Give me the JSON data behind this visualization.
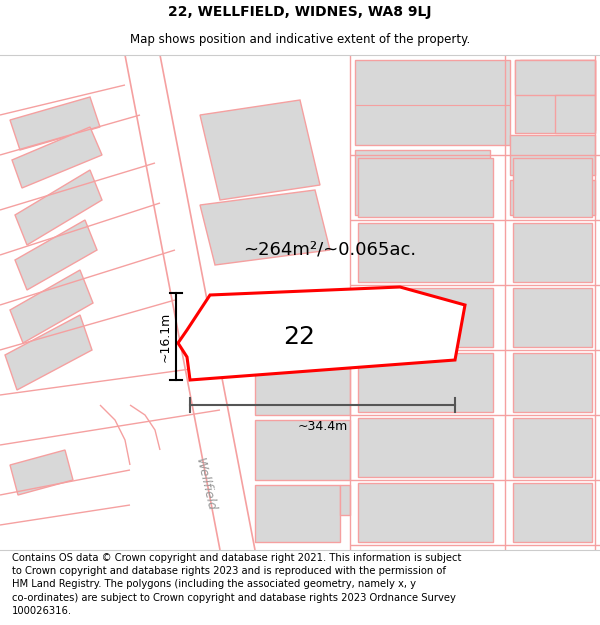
{
  "title": "22, WELLFIELD, WIDNES, WA8 9LJ",
  "subtitle": "Map shows position and indicative extent of the property.",
  "footer": "Contains OS data © Crown copyright and database right 2021. This information is subject\nto Crown copyright and database rights 2023 and is reproduced with the permission of\nHM Land Registry. The polygons (including the associated geometry, namely x, y\nco-ordinates) are subject to Crown copyright and database rights 2023 Ordnance Survey\n100026316.",
  "area_text": "~264m²/~0.065ac.",
  "label_22": "22",
  "dim_width": "~34.4m",
  "dim_height": "~16.1m",
  "road_label": "Wellfield",
  "road_color": "#f5a0a0",
  "building_fill": "#d8d8d8",
  "map_bg": "#ffffff",
  "title_fontsize": 10,
  "subtitle_fontsize": 8.5,
  "footer_fontsize": 7.2,
  "area_fontsize": 13,
  "label_fontsize": 18,
  "dim_fontsize": 9
}
